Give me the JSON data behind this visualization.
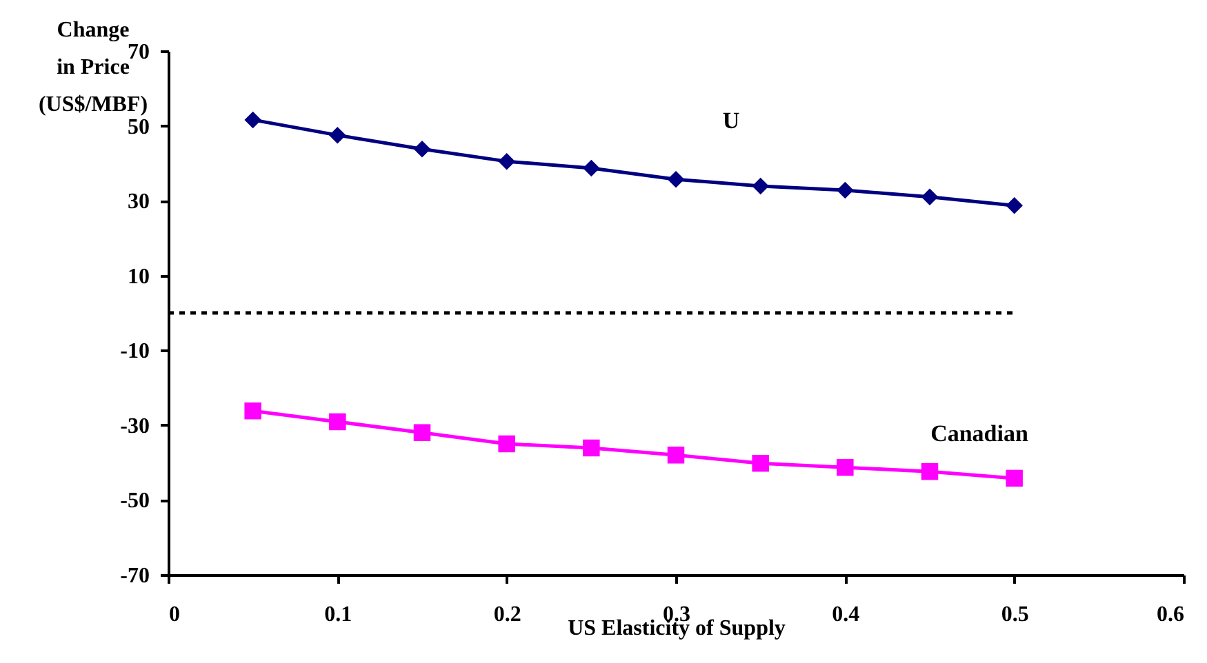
{
  "chart_data": {
    "type": "line",
    "xlabel": "US Elasticity of Supply",
    "ylabel": "Change\nin Price\n(US$/MBF)",
    "x": [
      0.05,
      0.1,
      0.15,
      0.2,
      0.25,
      0.3,
      0.35,
      0.4,
      0.45,
      0.5
    ],
    "series": [
      {
        "color": "#000080",
        "marker": "diamond",
        "values": [
          51.6,
          47.5,
          43.8,
          40.5,
          38.7,
          35.7,
          33.9,
          32.8,
          31.0,
          28.7
        ]
      },
      {
        "color": "#ff00ff",
        "marker": "square",
        "values": [
          -26.2,
          -29.1,
          -32.0,
          -35.0,
          -36.1,
          -38.0,
          -40.2,
          -41.3,
          -42.4,
          -44.2
        ]
      },
      {
        "type": "line",
        "color": "#000000",
        "marker": "none",
        "line_style": "dashed",
        "x": [
          0,
          0.5
        ],
        "values": [
          0,
          0
        ]
      }
    ],
    "annotations": [
      "U",
      "Canadian"
    ],
    "xlim": [
      0,
      0.6
    ],
    "xticks": [
      0,
      0.1,
      0.2,
      0.3,
      0.4,
      0.5,
      0.6
    ],
    "ylim": [
      -70,
      70
    ],
    "yticks": [
      -70,
      -50,
      -30,
      -10,
      10,
      30,
      50,
      70
    ],
    "grid": false
  }
}
